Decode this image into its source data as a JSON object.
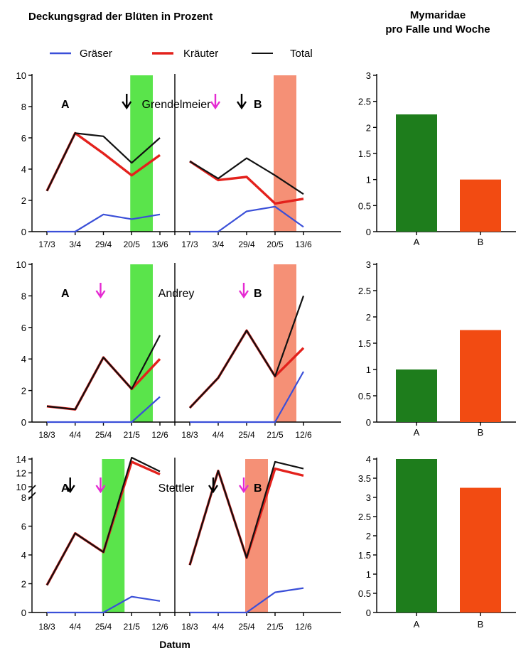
{
  "titles": {
    "left": "Deckungsgrad der Blüten in Prozent",
    "right_line1": "Mymaridae",
    "right_line2": "pro Falle und Woche"
  },
  "legend": {
    "items": [
      {
        "label": "Gräser",
        "color": "#3a4fd8"
      },
      {
        "label": "Kräuter",
        "color": "#e3211c"
      },
      {
        "label": "Total",
        "color": "#111111"
      }
    ]
  },
  "xlabel": "Datum",
  "colors": {
    "grass": "#3a4fd8",
    "herb": "#e3211c",
    "total": "#111111",
    "overlap": "#5a0f0f",
    "band_A": "#4ce23c",
    "band_B": "#f4876a",
    "bar_A": "#1e7d1c",
    "bar_B": "#f24b12",
    "arrow_black": "#000000",
    "arrow_magenta": "#e52ad2"
  },
  "chart_data": [
    {
      "type": "line",
      "site": "Grendelmeier",
      "ylim": [
        0,
        10
      ],
      "yticks": [
        "0",
        "2",
        "4",
        "6",
        "8",
        "10"
      ],
      "panels": [
        {
          "label": "A",
          "x_ticks": [
            "17/3",
            "3/4",
            "29/4",
            "20/5",
            "13/6"
          ],
          "band": [
            "20/5",
            "13/6"
          ],
          "arrows": [
            {
              "x": "20/5",
              "color": "black"
            }
          ],
          "series": [
            {
              "name": "Gräser",
              "x": [
                "17/3",
                "3/4",
                "29/4",
                "20/5",
                "13/6"
              ],
              "y": [
                0,
                0,
                1.1,
                0.8,
                1.1
              ]
            },
            {
              "name": "Kräuter",
              "x": [
                "17/3",
                "3/4",
                "29/4",
                "20/5",
                "13/6"
              ],
              "y": [
                2.6,
                6.3,
                5.0,
                3.6,
                4.9
              ]
            },
            {
              "name": "Total",
              "x": [
                "17/3",
                "3/4",
                "29/4",
                "20/5",
                "13/6"
              ],
              "y": [
                2.6,
                6.3,
                6.1,
                4.4,
                6.0
              ]
            }
          ]
        },
        {
          "label": "B",
          "x_ticks": [
            "17/3",
            "3/4",
            "29/4",
            "20/5",
            "13/6"
          ],
          "band": [
            "20/5",
            "13/6"
          ],
          "arrows": [
            {
              "x": "3/4",
              "color": "magenta"
            },
            {
              "x": "29/4",
              "color": "black"
            }
          ],
          "series": [
            {
              "name": "Gräser",
              "x": [
                "17/3",
                "3/4",
                "29/4",
                "20/5",
                "13/6"
              ],
              "y": [
                0,
                0,
                1.3,
                1.6,
                0.3
              ]
            },
            {
              "name": "Kräuter",
              "x": [
                "17/3",
                "3/4",
                "29/4",
                "20/5",
                "13/6"
              ],
              "y": [
                4.5,
                3.3,
                3.5,
                1.8,
                2.1
              ]
            },
            {
              "name": "Total",
              "x": [
                "17/3",
                "3/4",
                "29/4",
                "20/5",
                "13/6"
              ],
              "y": [
                4.5,
                3.4,
                4.7,
                3.6,
                2.4
              ]
            }
          ]
        }
      ],
      "bars": {
        "categories": [
          "A",
          "B"
        ],
        "values": [
          2.25,
          1.0
        ],
        "ylim": [
          0,
          3
        ],
        "yticks": [
          "0",
          "0.5",
          "1",
          "1.5",
          "2",
          "2.5",
          "3"
        ]
      }
    },
    {
      "type": "line",
      "site": "Andrey",
      "ylim": [
        0,
        10
      ],
      "yticks": [
        "0",
        "2",
        "4",
        "6",
        "8",
        "10"
      ],
      "panels": [
        {
          "label": "A",
          "x_ticks": [
            "18/3",
            "4/4",
            "25/4",
            "21/5",
            "12/6"
          ],
          "band": [
            "21/5",
            "12/6"
          ],
          "arrows": [
            {
              "x": "25/4",
              "color": "magenta"
            }
          ],
          "series": [
            {
              "name": "Gräser",
              "x": [
                "18/3",
                "4/4",
                "25/4",
                "21/5",
                "12/6"
              ],
              "y": [
                0,
                0,
                0,
                0,
                1.6
              ]
            },
            {
              "name": "Kräuter",
              "x": [
                "18/3",
                "4/4",
                "25/4",
                "21/5",
                "12/6"
              ],
              "y": [
                1.0,
                0.8,
                4.1,
                2.1,
                4.0
              ]
            },
            {
              "name": "Total",
              "x": [
                "18/3",
                "4/4",
                "25/4",
                "21/5",
                "12/6"
              ],
              "y": [
                1.0,
                0.8,
                4.1,
                2.1,
                5.5
              ]
            }
          ]
        },
        {
          "label": "B",
          "x_ticks": [
            "18/3",
            "4/4",
            "25/4",
            "21/5",
            "12/6"
          ],
          "band": [
            "21/5",
            "12/6"
          ],
          "arrows": [
            {
              "x": "25/4",
              "color": "magenta"
            }
          ],
          "series": [
            {
              "name": "Gräser",
              "x": [
                "18/3",
                "4/4",
                "25/4",
                "21/5",
                "12/6"
              ],
              "y": [
                0,
                0,
                0,
                0,
                3.2
              ]
            },
            {
              "name": "Kräuter",
              "x": [
                "18/3",
                "4/4",
                "25/4",
                "21/5",
                "12/6"
              ],
              "y": [
                0.9,
                2.8,
                5.8,
                2.9,
                4.7
              ]
            },
            {
              "name": "Total",
              "x": [
                "18/3",
                "4/4",
                "25/4",
                "21/5",
                "12/6"
              ],
              "y": [
                0.9,
                2.8,
                5.8,
                2.9,
                8.0
              ]
            }
          ]
        }
      ],
      "bars": {
        "categories": [
          "A",
          "B"
        ],
        "values": [
          1.0,
          1.75
        ],
        "ylim": [
          0,
          3
        ],
        "yticks": [
          "0",
          "0.5",
          "1",
          "1.5",
          "2",
          "2.5",
          "3"
        ]
      }
    },
    {
      "type": "line",
      "site": "Stettler",
      "ylim": [
        0,
        14
      ],
      "axis_break": [
        8,
        10
      ],
      "yticks": [
        "0",
        "2",
        "4",
        "6",
        "8",
        "10",
        "12",
        "14"
      ],
      "panels": [
        {
          "label": "A",
          "x_ticks": [
            "18/3",
            "4/4",
            "25/4",
            "21/5",
            "12/6"
          ],
          "band": [
            "25/4",
            "21/5"
          ],
          "arrows": [
            {
              "x": "4/4",
              "color": "black"
            },
            {
              "x": "25/4",
              "color": "magenta"
            }
          ],
          "series": [
            {
              "name": "Gräser",
              "x": [
                "18/3",
                "4/4",
                "25/4",
                "21/5",
                "12/6"
              ],
              "y": [
                0,
                0,
                0,
                1.1,
                0.8
              ]
            },
            {
              "name": "Kräuter",
              "x": [
                "18/3",
                "4/4",
                "25/4",
                "21/5",
                "12/6"
              ],
              "y": [
                1.9,
                5.5,
                4.2,
                13.6,
                11.8
              ]
            },
            {
              "name": "Total",
              "x": [
                "18/3",
                "4/4",
                "25/4",
                "21/5",
                "12/6"
              ],
              "y": [
                1.9,
                5.5,
                4.2,
                14.2,
                12.2
              ]
            }
          ]
        },
        {
          "label": "B",
          "x_ticks": [
            "18/3",
            "4/4",
            "25/4",
            "21/5",
            "12/6"
          ],
          "band": [
            "25/4",
            "21/5"
          ],
          "arrows": [
            {
              "x": "4/4",
              "color": "black"
            },
            {
              "x": "25/4",
              "color": "magenta"
            }
          ],
          "series": [
            {
              "name": "Gräser",
              "x": [
                "18/3",
                "4/4",
                "25/4",
                "21/5",
                "12/6"
              ],
              "y": [
                0,
                0,
                0,
                1.4,
                1.7
              ]
            },
            {
              "name": "Kräuter",
              "x": [
                "18/3",
                "4/4",
                "25/4",
                "21/5",
                "12/6"
              ],
              "y": [
                3.3,
                12.3,
                3.8,
                12.6,
                11.6
              ]
            },
            {
              "name": "Total",
              "x": [
                "18/3",
                "4/4",
                "25/4",
                "21/5",
                "12/6"
              ],
              "y": [
                3.3,
                12.3,
                3.8,
                13.6,
                12.6
              ]
            }
          ]
        }
      ],
      "bars": {
        "categories": [
          "A",
          "B"
        ],
        "values": [
          4.0,
          3.25
        ],
        "ylim": [
          0,
          4
        ],
        "yticks": [
          "0",
          "0.5",
          "1",
          "1.5",
          "2",
          "2.5",
          "3",
          "3.5",
          "4"
        ]
      }
    }
  ]
}
